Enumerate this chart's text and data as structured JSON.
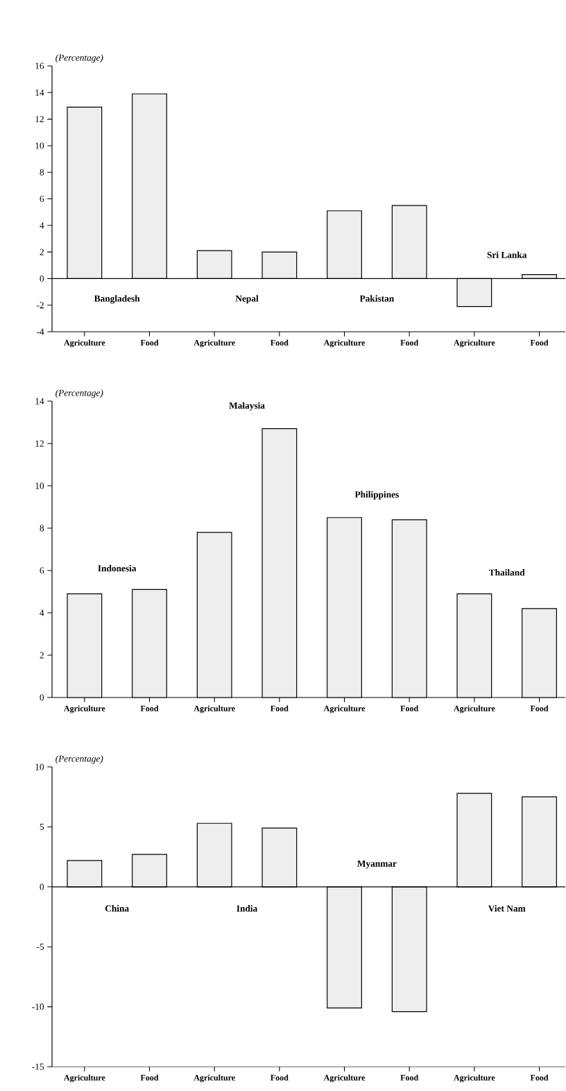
{
  "chart_data": [
    {
      "type": "bar",
      "ylabel": "(Percentage)",
      "categories": [
        "Agriculture",
        "Food",
        "Agriculture",
        "Food",
        "Agriculture",
        "Food",
        "Agriculture",
        "Food"
      ],
      "values": [
        12.9,
        13.9,
        2.1,
        2.0,
        5.1,
        5.5,
        -2.1,
        0.3
      ],
      "color": "#eeeeee",
      "ylim": [
        -4,
        16
      ],
      "yticks": [
        -4,
        -2,
        0,
        2,
        4,
        6,
        8,
        10,
        12,
        14,
        16
      ],
      "ref_lines": [
        {
          "axis": "y",
          "value": 0
        }
      ],
      "annotations": [
        "Bangladesh",
        "Nepal",
        "Pakistan",
        "Sri Lanka"
      ]
    },
    {
      "type": "bar",
      "ylabel": "(Percentage)",
      "categories": [
        "Agriculture",
        "Food",
        "Agriculture",
        "Food",
        "Agriculture",
        "Food",
        "Agriculture",
        "Food"
      ],
      "values": [
        4.9,
        5.1,
        7.8,
        12.7,
        8.5,
        8.4,
        4.9,
        4.2
      ],
      "color": "#eeeeee",
      "ylim": [
        0,
        14
      ],
      "yticks": [
        0,
        2,
        4,
        6,
        8,
        10,
        12,
        14
      ],
      "annotations": [
        "Indonesia",
        "Malaysia",
        "Philippines",
        "Thailand"
      ]
    },
    {
      "type": "bar",
      "ylabel": "(Percentage)",
      "categories": [
        "Agriculture",
        "Food",
        "Agriculture",
        "Food",
        "Agriculture",
        "Food",
        "Agriculture",
        "Food"
      ],
      "values": [
        2.2,
        2.7,
        5.3,
        4.9,
        -10.1,
        -10.4,
        7.8,
        7.5
      ],
      "color": "#eeeeee",
      "ylim": [
        -15,
        10
      ],
      "yticks": [
        -15,
        -10,
        -5,
        0,
        5,
        10
      ],
      "ref_lines": [
        {
          "axis": "y",
          "value": 0
        }
      ],
      "annotations": [
        "China",
        "India",
        "Myanmar",
        "Viet Nam"
      ]
    }
  ]
}
